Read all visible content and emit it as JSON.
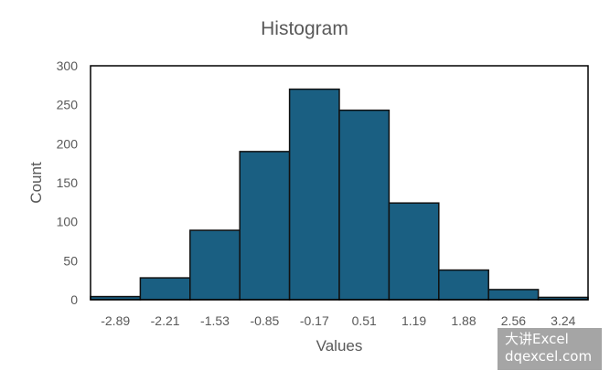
{
  "chart_data": {
    "type": "bar",
    "title": "Histogram",
    "xlabel": "Values",
    "ylabel": "Count",
    "ylim": [
      0,
      300
    ],
    "yticks": [
      0,
      50,
      100,
      150,
      200,
      250,
      300
    ],
    "categories": [
      "-2.89",
      "-2.21",
      "-1.53",
      "-0.85",
      "-0.17",
      "0.51",
      "1.19",
      "1.88",
      "2.56",
      "3.24"
    ],
    "values": [
      4,
      28,
      89,
      190,
      270,
      243,
      124,
      38,
      13,
      3
    ],
    "grid": false,
    "legend": "none",
    "colors": {
      "bar_fill": "#1a5f82",
      "bar_stroke": "#111111",
      "text": "#595959",
      "axis": "#000000"
    }
  },
  "watermark": {
    "line1": "大讲Excel",
    "line2": "dqexcel.com"
  }
}
